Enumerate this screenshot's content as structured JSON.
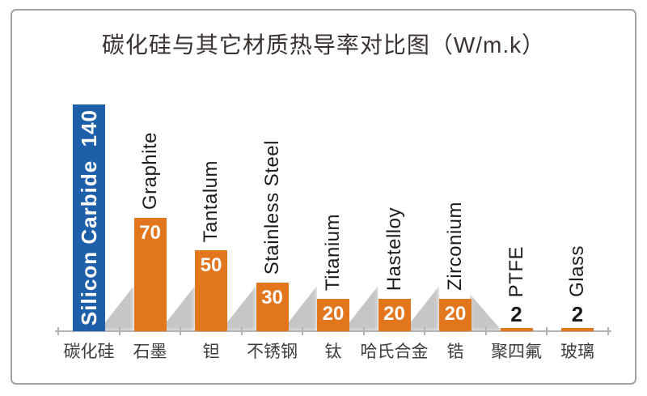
{
  "title": "碳化硅与其它材质热导率对比图（W/m.k）",
  "frame": {
    "border_color": "#a2a2a2"
  },
  "colors": {
    "highlight_bar": "#1d5fa9",
    "bar": "#e2761c",
    "axis": "#b3b3b3",
    "title_text": "#3a3231",
    "axis_label_text": "#3d3d3d",
    "bar_label_text": "#1c1c1c",
    "value_inside_text": "#ffffff",
    "value_above_text": "#1a1a1a"
  },
  "chart_data": {
    "type": "bar",
    "title": "碳化硅与其它材质热导率对比图（W/m.k）",
    "unit": "W/m.k",
    "categories": [
      "碳化硅",
      "石墨",
      "钽",
      "不锈钢",
      "钛",
      "哈氏合金",
      "锆",
      "聚四氟",
      "玻璃"
    ],
    "labels_en": [
      "Silicon Carbide",
      "Graphite",
      "Tantalum",
      "Stainless Steel",
      "Titanium",
      "Hastelloy",
      "Zirconium",
      "PTFE",
      "Glass"
    ],
    "values": [
      140,
      70,
      50,
      30,
      20,
      20,
      20,
      2,
      2
    ],
    "bar_colors": [
      "#1d5fa9",
      "#e2761c",
      "#e2761c",
      "#e2761c",
      "#e2761c",
      "#e2761c",
      "#e2761c",
      "#e2761c",
      "#e2761c"
    ],
    "label_position": [
      "inside",
      "above",
      "above",
      "above",
      "above",
      "above",
      "above",
      "above",
      "above"
    ],
    "value_position": [
      "inside-with-label",
      "inside",
      "inside",
      "inside",
      "inside",
      "inside",
      "inside",
      "above",
      "above"
    ],
    "xlabel": "",
    "ylabel": "",
    "ylim": [
      0,
      150
    ],
    "grid": false,
    "legend": "none",
    "y_axis_shown": false
  }
}
